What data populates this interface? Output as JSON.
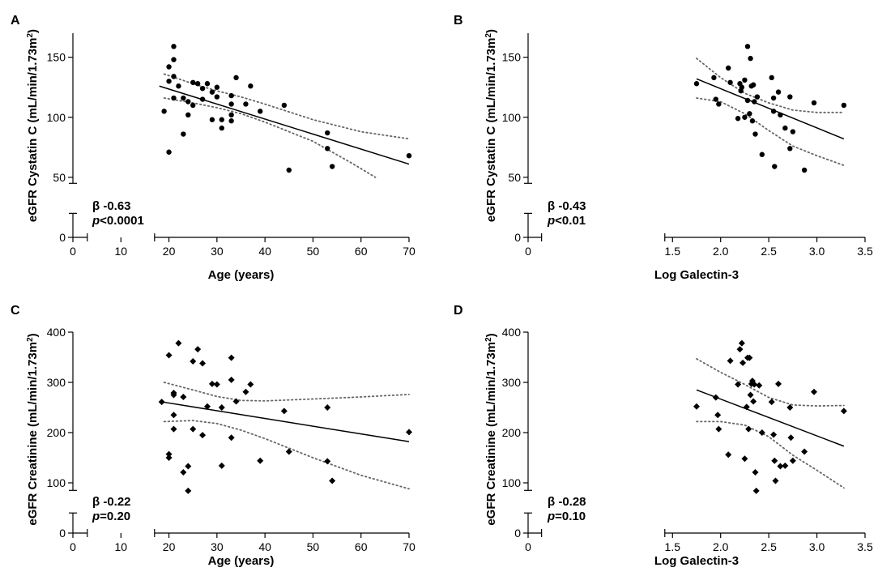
{
  "chart_data": [
    {
      "panel": "A",
      "type": "scatter",
      "marker": "circle",
      "xlabel": "Age (years)",
      "ylabel_main": "eGFR Cystatin C (mL/min/1.73m",
      "ylabel_sup": "2",
      "ylabel_end": ")",
      "xlim": [
        0,
        70
      ],
      "xbreak": [
        3,
        17
      ],
      "xticks": [
        0,
        10,
        20,
        30,
        40,
        50,
        60,
        70
      ],
      "ylim": [
        0,
        170
      ],
      "ybreak": [
        20,
        45
      ],
      "yticks": [
        0,
        50,
        100,
        150
      ],
      "beta": "β -0.63",
      "p_label": "p",
      "p_value": "<0.0001",
      "fit": {
        "x": [
          18,
          70
        ],
        "y": [
          126,
          61
        ]
      },
      "ci_upper": [
        [
          19,
          136
        ],
        [
          25,
          128
        ],
        [
          30,
          122
        ],
        [
          35,
          117
        ],
        [
          40,
          111
        ],
        [
          50,
          98
        ],
        [
          60,
          88
        ],
        [
          70,
          82
        ]
      ],
      "ci_lower": [
        [
          19,
          116
        ],
        [
          25,
          112
        ],
        [
          30,
          108
        ],
        [
          35,
          103
        ],
        [
          40,
          96
        ],
        [
          50,
          80
        ],
        [
          58,
          62
        ],
        [
          63,
          50
        ]
      ],
      "points": [
        [
          19,
          105
        ],
        [
          20,
          71
        ],
        [
          20,
          130
        ],
        [
          20,
          142
        ],
        [
          21,
          159
        ],
        [
          21,
          148
        ],
        [
          21,
          134
        ],
        [
          21,
          116
        ],
        [
          22,
          126
        ],
        [
          23,
          116
        ],
        [
          23,
          86
        ],
        [
          24,
          102
        ],
        [
          24,
          113
        ],
        [
          25,
          110
        ],
        [
          25,
          129
        ],
        [
          26,
          128
        ],
        [
          27,
          124
        ],
        [
          27,
          115
        ],
        [
          28,
          128
        ],
        [
          29,
          121
        ],
        [
          29,
          98
        ],
        [
          30,
          125
        ],
        [
          30,
          117
        ],
        [
          31,
          91
        ],
        [
          31,
          98
        ],
        [
          33,
          118
        ],
        [
          33,
          111
        ],
        [
          33,
          102
        ],
        [
          33,
          97
        ],
        [
          34,
          133
        ],
        [
          36,
          111
        ],
        [
          37,
          126
        ],
        [
          39,
          105
        ],
        [
          44,
          110
        ],
        [
          45,
          56
        ],
        [
          53,
          87
        ],
        [
          53,
          74
        ],
        [
          54,
          59
        ],
        [
          70,
          68
        ]
      ]
    },
    {
      "panel": "B",
      "type": "scatter",
      "marker": "circle",
      "xlabel": "Log Galectin-3",
      "ylabel_main": "eGFR Cystatin C (mL/min/1.73m",
      "ylabel_sup": "2",
      "ylabel_end": ")",
      "xlim": [
        0,
        3.5
      ],
      "xbreak": [
        0.14,
        1.42
      ],
      "xticks": [
        0,
        1.5,
        2.0,
        2.5,
        3.0,
        3.5
      ],
      "xticklabels": [
        "0",
        "1.5",
        "2.0",
        "2.5",
        "3.0",
        "3.5"
      ],
      "ylim": [
        0,
        170
      ],
      "ybreak": [
        20,
        45
      ],
      "yticks": [
        0,
        50,
        100,
        150
      ],
      "beta": "β -0.43",
      "p_label": "p",
      "p_value": "<0.01",
      "fit": {
        "x": [
          1.75,
          3.28
        ],
        "y": [
          132,
          82
        ]
      },
      "ci_upper": [
        [
          1.75,
          149
        ],
        [
          2.0,
          133
        ],
        [
          2.25,
          120
        ],
        [
          2.5,
          112
        ],
        [
          2.75,
          106
        ],
        [
          3.0,
          104
        ],
        [
          3.28,
          104
        ]
      ],
      "ci_lower": [
        [
          1.75,
          116
        ],
        [
          2.0,
          113
        ],
        [
          2.25,
          103
        ],
        [
          2.5,
          89
        ],
        [
          2.75,
          76
        ],
        [
          3.0,
          68
        ],
        [
          3.28,
          60
        ]
      ],
      "points": [
        [
          1.75,
          128
        ],
        [
          1.93,
          133
        ],
        [
          1.95,
          115
        ],
        [
          1.98,
          111
        ],
        [
          2.08,
          141
        ],
        [
          2.1,
          129
        ],
        [
          2.18,
          99
        ],
        [
          2.2,
          128
        ],
        [
          2.21,
          122
        ],
        [
          2.22,
          125
        ],
        [
          2.25,
          131
        ],
        [
          2.25,
          100
        ],
        [
          2.28,
          114
        ],
        [
          2.28,
          159
        ],
        [
          2.3,
          103
        ],
        [
          2.31,
          149
        ],
        [
          2.32,
          126
        ],
        [
          2.33,
          97
        ],
        [
          2.34,
          127
        ],
        [
          2.35,
          113
        ],
        [
          2.36,
          86
        ],
        [
          2.38,
          117
        ],
        [
          2.43,
          69
        ],
        [
          2.53,
          133
        ],
        [
          2.55,
          105
        ],
        [
          2.55,
          116
        ],
        [
          2.56,
          59
        ],
        [
          2.6,
          121
        ],
        [
          2.62,
          102
        ],
        [
          2.67,
          91
        ],
        [
          2.72,
          117
        ],
        [
          2.72,
          74
        ],
        [
          2.75,
          88
        ],
        [
          2.87,
          56
        ],
        [
          2.97,
          112
        ],
        [
          3.28,
          110
        ]
      ]
    },
    {
      "panel": "C",
      "type": "scatter",
      "marker": "diamond",
      "xlabel": "Age (years)",
      "ylabel_main": "eGFR Creatinine (mL/min/1.73m",
      "ylabel_sup": "2",
      "ylabel_end": ")",
      "xlim": [
        0,
        70
      ],
      "xbreak": [
        3,
        17
      ],
      "xticks": [
        0,
        10,
        20,
        30,
        40,
        50,
        60,
        70
      ],
      "ylim": [
        0,
        400
      ],
      "ybreak": [
        40,
        85
      ],
      "yticks": [
        0,
        100,
        200,
        300,
        400
      ],
      "beta": "β -0.22",
      "p_label": "p",
      "p_value": "=0.20",
      "fit": {
        "x": [
          18,
          70
        ],
        "y": [
          262,
          182
        ]
      },
      "ci_upper": [
        [
          19,
          300
        ],
        [
          25,
          285
        ],
        [
          30,
          272
        ],
        [
          35,
          264
        ],
        [
          40,
          263
        ],
        [
          50,
          267
        ],
        [
          60,
          271
        ],
        [
          70,
          276
        ]
      ],
      "ci_lower": [
        [
          19,
          222
        ],
        [
          25,
          224
        ],
        [
          30,
          218
        ],
        [
          35,
          205
        ],
        [
          40,
          188
        ],
        [
          50,
          150
        ],
        [
          60,
          115
        ],
        [
          70,
          88
        ]
      ],
      "points": [
        [
          18.5,
          261
        ],
        [
          20,
          354
        ],
        [
          20,
          157
        ],
        [
          20,
          150
        ],
        [
          21,
          275
        ],
        [
          21,
          279
        ],
        [
          21,
          235
        ],
        [
          21,
          207
        ],
        [
          22,
          378
        ],
        [
          23,
          271
        ],
        [
          23,
          121
        ],
        [
          24,
          133
        ],
        [
          24,
          84
        ],
        [
          25,
          342
        ],
        [
          25,
          207
        ],
        [
          26,
          366
        ],
        [
          27,
          338
        ],
        [
          27,
          195
        ],
        [
          28,
          252
        ],
        [
          29,
          297
        ],
        [
          30,
          296
        ],
        [
          31,
          250
        ],
        [
          31,
          134
        ],
        [
          33,
          349
        ],
        [
          33,
          305
        ],
        [
          33,
          190
        ],
        [
          34,
          262
        ],
        [
          36,
          281
        ],
        [
          37,
          296
        ],
        [
          39,
          144
        ],
        [
          44,
          243
        ],
        [
          45,
          162
        ],
        [
          53,
          250
        ],
        [
          53,
          143
        ],
        [
          54,
          104
        ],
        [
          70,
          201
        ]
      ]
    },
    {
      "panel": "D",
      "type": "scatter",
      "marker": "diamond",
      "xlabel": "Log Galectin-3",
      "ylabel_main": "eGFR Creatinine (mL/min/1.73m",
      "ylabel_sup": "2",
      "ylabel_end": ")",
      "xlim": [
        0,
        3.5
      ],
      "xbreak": [
        0.14,
        1.42
      ],
      "xticks": [
        0,
        1.5,
        2.0,
        2.5,
        3.0,
        3.5
      ],
      "xticklabels": [
        "0",
        "1.5",
        "2.0",
        "2.5",
        "3.0",
        "3.5"
      ],
      "ylim": [
        0,
        400
      ],
      "ybreak": [
        40,
        85
      ],
      "yticks": [
        0,
        100,
        200,
        300,
        400
      ],
      "beta": "β -0.28",
      "p_label": "p",
      "p_value": "=0.10",
      "fit": {
        "x": [
          1.75,
          3.28
        ],
        "y": [
          285,
          173
        ]
      },
      "ci_upper": [
        [
          1.75,
          347
        ],
        [
          2.0,
          320
        ],
        [
          2.25,
          296
        ],
        [
          2.5,
          270
        ],
        [
          2.75,
          255
        ],
        [
          3.0,
          253
        ],
        [
          3.28,
          254
        ]
      ],
      "ci_lower": [
        [
          1.75,
          222
        ],
        [
          2.0,
          222
        ],
        [
          2.25,
          215
        ],
        [
          2.5,
          192
        ],
        [
          2.75,
          155
        ],
        [
          3.0,
          125
        ],
        [
          3.28,
          90
        ]
      ],
      "points": [
        [
          1.75,
          252
        ],
        [
          1.95,
          270
        ],
        [
          1.97,
          235
        ],
        [
          1.98,
          207
        ],
        [
          2.08,
          156
        ],
        [
          2.1,
          343
        ],
        [
          2.18,
          296
        ],
        [
          2.2,
          366
        ],
        [
          2.22,
          378
        ],
        [
          2.23,
          339
        ],
        [
          2.25,
          148
        ],
        [
          2.27,
          251
        ],
        [
          2.28,
          349
        ],
        [
          2.29,
          207
        ],
        [
          2.3,
          349
        ],
        [
          2.31,
          275
        ],
        [
          2.32,
          297
        ],
        [
          2.33,
          303
        ],
        [
          2.34,
          262
        ],
        [
          2.35,
          296
        ],
        [
          2.36,
          121
        ],
        [
          2.37,
          84
        ],
        [
          2.4,
          294
        ],
        [
          2.43,
          200
        ],
        [
          2.53,
          261
        ],
        [
          2.55,
          196
        ],
        [
          2.56,
          144
        ],
        [
          2.57,
          104
        ],
        [
          2.6,
          297
        ],
        [
          2.62,
          133
        ],
        [
          2.67,
          134
        ],
        [
          2.72,
          250
        ],
        [
          2.73,
          190
        ],
        [
          2.75,
          144
        ],
        [
          2.87,
          162
        ],
        [
          2.97,
          281
        ],
        [
          3.28,
          243
        ]
      ]
    }
  ]
}
